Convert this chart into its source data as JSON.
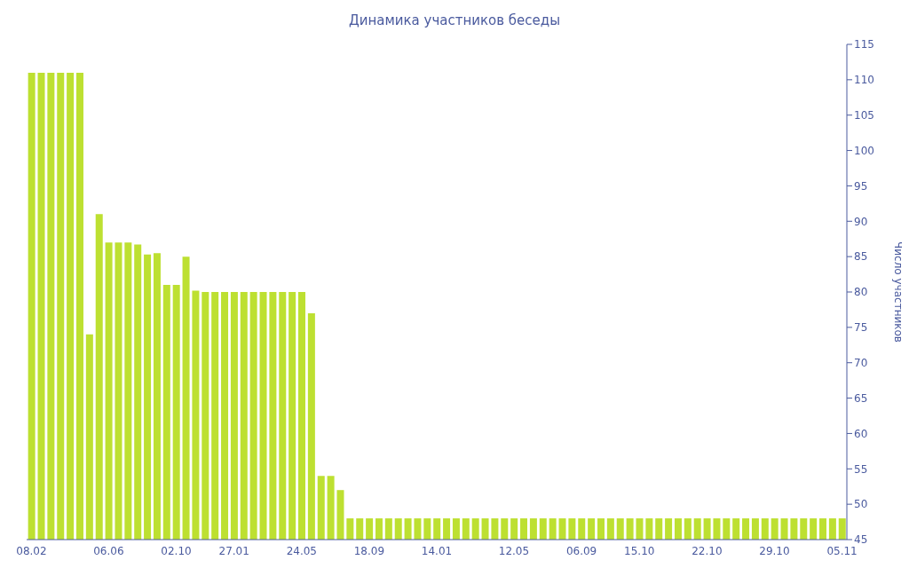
{
  "chart_data": {
    "type": "bar",
    "title": "Динамика участников беседы",
    "ylabel": "Число участников",
    "categories": [
      "08.02",
      null,
      null,
      null,
      null,
      null,
      null,
      null,
      "06.06",
      null,
      null,
      null,
      null,
      null,
      null,
      "02.10",
      null,
      null,
      null,
      null,
      null,
      "27.01",
      null,
      null,
      null,
      null,
      null,
      null,
      "24.05",
      null,
      null,
      null,
      null,
      null,
      null,
      "18.09",
      null,
      null,
      null,
      null,
      null,
      null,
      "14.01",
      null,
      null,
      null,
      null,
      null,
      null,
      null,
      "12.05",
      null,
      null,
      null,
      null,
      null,
      null,
      "06.09",
      null,
      null,
      null,
      null,
      null,
      "15.10",
      null,
      null,
      null,
      null,
      null,
      null,
      "22.10",
      null,
      null,
      null,
      null,
      null,
      null,
      "29.10",
      null,
      null,
      null,
      null,
      null,
      null,
      "05.11"
    ],
    "values": [
      111,
      111,
      111,
      111,
      111,
      111,
      74,
      91,
      87,
      87,
      87,
      86.7,
      85.3,
      85.5,
      81,
      81,
      85,
      80.2,
      80,
      80,
      80,
      80,
      80,
      80,
      80,
      80,
      80,
      80,
      80,
      77,
      54,
      54,
      52,
      48,
      48,
      48,
      48,
      48,
      48,
      48,
      48,
      48,
      48,
      48,
      48,
      48,
      48,
      48,
      48,
      48,
      48,
      48,
      48,
      48,
      48,
      48,
      48,
      48,
      48,
      48,
      48,
      48,
      48,
      48,
      48,
      48,
      48,
      48,
      48,
      48,
      48,
      48,
      48,
      48,
      48,
      48,
      48,
      48,
      48,
      48,
      48,
      48,
      48,
      48,
      48
    ],
    "color": "#bde031",
    "ylim": [
      45,
      115
    ],
    "yticks": [
      45,
      50,
      55,
      60,
      65,
      70,
      75,
      80,
      85,
      90,
      95,
      100,
      105,
      110,
      115
    ]
  }
}
